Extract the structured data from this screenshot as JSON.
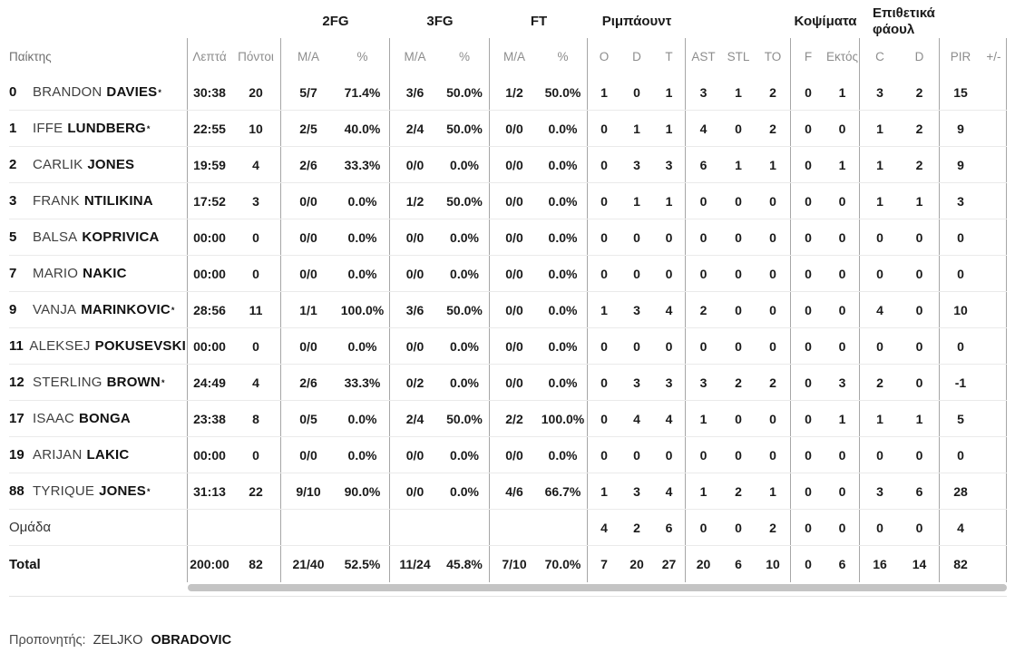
{
  "colors": {
    "text_dark": "#1a1a1a",
    "text_gray": "#8d8d8d",
    "line_dark": "#a6a6a6",
    "line_light": "#eaeaea",
    "scrollbar": "#c4c4c4"
  },
  "head": {
    "player": "Παίκτης",
    "min": "Λεπτά",
    "pts": "Πόντοι",
    "g2": "2FG",
    "g3": "3FG",
    "gft": "FT",
    "greb": "Ριμπάουντ",
    "gblk": "Κοψίματα",
    "gfoul1": "Επιθετικά",
    "gfoul2": "φάουλ",
    "ma2": "M/A",
    "pct2": "%",
    "ma3": "M/A",
    "pct3": "%",
    "maf": "M/A",
    "pctf": "%",
    "o": "O",
    "d": "D",
    "t": "T",
    "ast": "AST",
    "stl": "STL",
    "to": "TO",
    "f": "F",
    "ektos": "Εκτός",
    "c": "C",
    "d2": "D",
    "pir": "PIR",
    "pm": "+/-"
  },
  "table": {
    "players": [
      {
        "num": "0",
        "first": "BRANDON",
        "last": "DAVIES",
        "star": "*",
        "min": "30:38",
        "pts": "20",
        "m2": "5/7",
        "p2": "71.4%",
        "m3": "3/6",
        "p3": "50.0%",
        "mf": "1/2",
        "pf": "50.0%",
        "ro": "1",
        "rd": "0",
        "rt": "1",
        "ast": "3",
        "stl": "1",
        "to": "2",
        "f": "0",
        "ek": "1",
        "c": "3",
        "d": "2",
        "pir": "15",
        "pm": ""
      },
      {
        "num": "1",
        "first": "IFFE",
        "last": "LUNDBERG",
        "star": "*",
        "min": "22:55",
        "pts": "10",
        "m2": "2/5",
        "p2": "40.0%",
        "m3": "2/4",
        "p3": "50.0%",
        "mf": "0/0",
        "pf": "0.0%",
        "ro": "0",
        "rd": "1",
        "rt": "1",
        "ast": "4",
        "stl": "0",
        "to": "2",
        "f": "0",
        "ek": "0",
        "c": "1",
        "d": "2",
        "pir": "9",
        "pm": ""
      },
      {
        "num": "2",
        "first": "CARLIK",
        "last": "JONES",
        "star": "",
        "min": "19:59",
        "pts": "4",
        "m2": "2/6",
        "p2": "33.3%",
        "m3": "0/0",
        "p3": "0.0%",
        "mf": "0/0",
        "pf": "0.0%",
        "ro": "0",
        "rd": "3",
        "rt": "3",
        "ast": "6",
        "stl": "1",
        "to": "1",
        "f": "0",
        "ek": "1",
        "c": "1",
        "d": "2",
        "pir": "9",
        "pm": ""
      },
      {
        "num": "3",
        "first": "FRANK",
        "last": "NTILIKINA",
        "star": "",
        "min": "17:52",
        "pts": "3",
        "m2": "0/0",
        "p2": "0.0%",
        "m3": "1/2",
        "p3": "50.0%",
        "mf": "0/0",
        "pf": "0.0%",
        "ro": "0",
        "rd": "1",
        "rt": "1",
        "ast": "0",
        "stl": "0",
        "to": "0",
        "f": "0",
        "ek": "0",
        "c": "1",
        "d": "1",
        "pir": "3",
        "pm": ""
      },
      {
        "num": "5",
        "first": "BALSA",
        "last": "KOPRIVICA",
        "star": "",
        "min": "00:00",
        "pts": "0",
        "m2": "0/0",
        "p2": "0.0%",
        "m3": "0/0",
        "p3": "0.0%",
        "mf": "0/0",
        "pf": "0.0%",
        "ro": "0",
        "rd": "0",
        "rt": "0",
        "ast": "0",
        "stl": "0",
        "to": "0",
        "f": "0",
        "ek": "0",
        "c": "0",
        "d": "0",
        "pir": "0",
        "pm": ""
      },
      {
        "num": "7",
        "first": "MARIO",
        "last": "NAKIC",
        "star": "",
        "min": "00:00",
        "pts": "0",
        "m2": "0/0",
        "p2": "0.0%",
        "m3": "0/0",
        "p3": "0.0%",
        "mf": "0/0",
        "pf": "0.0%",
        "ro": "0",
        "rd": "0",
        "rt": "0",
        "ast": "0",
        "stl": "0",
        "to": "0",
        "f": "0",
        "ek": "0",
        "c": "0",
        "d": "0",
        "pir": "0",
        "pm": ""
      },
      {
        "num": "9",
        "first": "VANJA",
        "last": "MARINKOVIC",
        "star": "*",
        "min": "28:56",
        "pts": "11",
        "m2": "1/1",
        "p2": "100.0%",
        "m3": "3/6",
        "p3": "50.0%",
        "mf": "0/0",
        "pf": "0.0%",
        "ro": "1",
        "rd": "3",
        "rt": "4",
        "ast": "2",
        "stl": "0",
        "to": "0",
        "f": "0",
        "ek": "0",
        "c": "4",
        "d": "0",
        "pir": "10",
        "pm": ""
      },
      {
        "num": "11",
        "first": "ALEKSEJ",
        "last": "POKUSEVSKI",
        "star": "",
        "min": "00:00",
        "pts": "0",
        "m2": "0/0",
        "p2": "0.0%",
        "m3": "0/0",
        "p3": "0.0%",
        "mf": "0/0",
        "pf": "0.0%",
        "ro": "0",
        "rd": "0",
        "rt": "0",
        "ast": "0",
        "stl": "0",
        "to": "0",
        "f": "0",
        "ek": "0",
        "c": "0",
        "d": "0",
        "pir": "0",
        "pm": ""
      },
      {
        "num": "12",
        "first": "STERLING",
        "last": "BROWN",
        "star": "*",
        "min": "24:49",
        "pts": "4",
        "m2": "2/6",
        "p2": "33.3%",
        "m3": "0/2",
        "p3": "0.0%",
        "mf": "0/0",
        "pf": "0.0%",
        "ro": "0",
        "rd": "3",
        "rt": "3",
        "ast": "3",
        "stl": "2",
        "to": "2",
        "f": "0",
        "ek": "3",
        "c": "2",
        "d": "0",
        "pir": "-1",
        "pm": ""
      },
      {
        "num": "17",
        "first": "ISAAC",
        "last": "BONGA",
        "star": "",
        "min": "23:38",
        "pts": "8",
        "m2": "0/5",
        "p2": "0.0%",
        "m3": "2/4",
        "p3": "50.0%",
        "mf": "2/2",
        "pf": "100.0%",
        "ro": "0",
        "rd": "4",
        "rt": "4",
        "ast": "1",
        "stl": "0",
        "to": "0",
        "f": "0",
        "ek": "1",
        "c": "1",
        "d": "1",
        "pir": "5",
        "pm": ""
      },
      {
        "num": "19",
        "first": "ARIJAN",
        "last": "LAKIC",
        "star": "",
        "min": "00:00",
        "pts": "0",
        "m2": "0/0",
        "p2": "0.0%",
        "m3": "0/0",
        "p3": "0.0%",
        "mf": "0/0",
        "pf": "0.0%",
        "ro": "0",
        "rd": "0",
        "rt": "0",
        "ast": "0",
        "stl": "0",
        "to": "0",
        "f": "0",
        "ek": "0",
        "c": "0",
        "d": "0",
        "pir": "0",
        "pm": ""
      },
      {
        "num": "88",
        "first": "TYRIQUE",
        "last": "JONES",
        "star": "*",
        "min": "31:13",
        "pts": "22",
        "m2": "9/10",
        "p2": "90.0%",
        "m3": "0/0",
        "p3": "0.0%",
        "mf": "4/6",
        "pf": "66.7%",
        "ro": "1",
        "rd": "3",
        "rt": "4",
        "ast": "1",
        "stl": "2",
        "to": "1",
        "f": "0",
        "ek": "0",
        "c": "3",
        "d": "6",
        "pir": "28",
        "pm": ""
      }
    ],
    "team": {
      "label": "Ομάδα",
      "min": "",
      "pts": "",
      "m2": "",
      "p2": "",
      "m3": "",
      "p3": "",
      "mf": "",
      "pf": "",
      "ro": "4",
      "rd": "2",
      "rt": "6",
      "ast": "0",
      "stl": "0",
      "to": "2",
      "f": "0",
      "ek": "0",
      "c": "0",
      "d": "0",
      "pir": "4",
      "pm": ""
    },
    "total": {
      "label": "Total",
      "min": "200:00",
      "pts": "82",
      "m2": "21/40",
      "p2": "52.5%",
      "m3": "11/24",
      "p3": "45.8%",
      "mf": "7/10",
      "pf": "70.0%",
      "ro": "7",
      "rd": "20",
      "rt": "27",
      "ast": "20",
      "stl": "6",
      "to": "10",
      "f": "0",
      "ek": "6",
      "c": "16",
      "d": "14",
      "pir": "82",
      "pm": ""
    }
  },
  "footer": {
    "coach_label": "Προπονητής:",
    "coach_first": "ZELJKO",
    "coach_last": "OBRADOVIC"
  }
}
